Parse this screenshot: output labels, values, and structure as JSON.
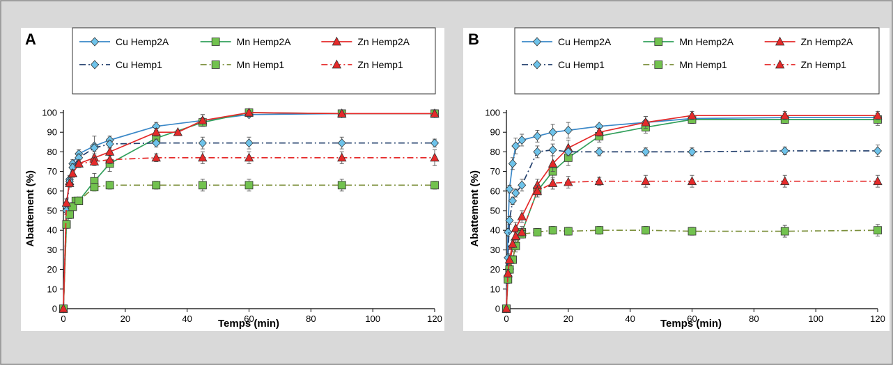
{
  "figure": {
    "background": "#d9d9d9",
    "panel_background": "#ffffff"
  },
  "chart_data": [
    {
      "panel": "A",
      "type": "line",
      "xlabel": "Temps (min)",
      "ylabel": "Abattement (%)",
      "xlim": [
        0,
        120
      ],
      "ylim": [
        0,
        100
      ],
      "xticks": [
        0,
        20,
        40,
        60,
        80,
        100,
        120
      ],
      "yticks": [
        0,
        10,
        20,
        30,
        40,
        50,
        60,
        70,
        80,
        90,
        100
      ],
      "grid": false,
      "legend": "top",
      "series": [
        {
          "name": "Cu Hemp2A",
          "marker": "diamond",
          "color": "#3a88c8",
          "marker_color": "#6ec3ea",
          "dash": "solid",
          "x": [
            0,
            1,
            2,
            3,
            5,
            10,
            15,
            30,
            45,
            60,
            90,
            120
          ],
          "y": [
            0,
            52,
            66,
            74,
            79,
            83,
            86,
            93,
            96,
            99,
            99.5,
            99.5
          ],
          "err": [
            0,
            2,
            2,
            2,
            2,
            5,
            2,
            2,
            3,
            1,
            1,
            1
          ]
        },
        {
          "name": "Mn Hemp2A",
          "marker": "square",
          "color": "#33a05c",
          "marker_color": "#72c24f",
          "dash": "solid",
          "x": [
            0,
            1,
            2,
            3,
            4,
            5,
            10,
            15,
            30,
            45,
            60,
            90,
            120
          ],
          "y": [
            0,
            43,
            48,
            52,
            55,
            55,
            65,
            74,
            87,
            95,
            100,
            99.5,
            99.5
          ],
          "err": [
            0,
            2,
            2,
            2,
            2,
            2,
            4,
            4,
            3,
            2,
            1,
            1,
            1
          ]
        },
        {
          "name": "Zn Hemp2A",
          "marker": "triangle",
          "color": "#e52a2a",
          "marker_color": "#e52a2a",
          "dash": "solid",
          "x": [
            0,
            1,
            2,
            3,
            5,
            10,
            15,
            30,
            37,
            45,
            60,
            90,
            120
          ],
          "y": [
            0,
            54,
            65,
            69,
            74,
            77,
            80,
            90,
            90,
            96,
            100,
            99.5,
            99.5
          ],
          "err": [
            0,
            2,
            2,
            2,
            2,
            2,
            2,
            2,
            1,
            3,
            1,
            1,
            2
          ]
        },
        {
          "name": "Cu Hemp1",
          "marker": "diamond",
          "color": "#24416e",
          "marker_color": "#6ec3ea",
          "dash": "dashdot",
          "x": [
            0,
            1,
            2,
            3,
            5,
            10,
            15,
            30,
            45,
            60,
            90,
            120
          ],
          "y": [
            0,
            50,
            65,
            72,
            77,
            82,
            84,
            84.5,
            84.5,
            84.5,
            84.5,
            84.5
          ],
          "err": [
            0,
            2,
            2,
            2,
            2,
            2,
            2,
            2,
            3,
            3,
            3,
            2
          ]
        },
        {
          "name": "Mn Hemp1",
          "marker": "square",
          "color": "#7b8f3a",
          "marker_color": "#72c24f",
          "dash": "dashdot",
          "x": [
            0,
            1,
            2,
            3,
            5,
            10,
            15,
            30,
            45,
            60,
            90,
            120
          ],
          "y": [
            0,
            43,
            48,
            52,
            55,
            62,
            63,
            63,
            63,
            63,
            63,
            63
          ],
          "err": [
            0,
            2,
            2,
            2,
            2,
            2,
            2,
            2,
            3,
            3,
            3,
            2
          ]
        },
        {
          "name": "Zn Hemp1",
          "marker": "triangle",
          "color": "#e52a2a",
          "marker_color": "#e52a2a",
          "dash": "dashdot",
          "x": [
            0,
            1,
            2,
            3,
            5,
            10,
            15,
            30,
            45,
            60,
            90,
            120
          ],
          "y": [
            0,
            54,
            64,
            69,
            74,
            75,
            76,
            77,
            77,
            77,
            77,
            77
          ],
          "err": [
            0,
            2,
            2,
            2,
            2,
            2,
            2,
            2,
            3,
            3,
            3,
            4
          ]
        }
      ]
    },
    {
      "panel": "B",
      "type": "line",
      "xlabel": "Temps (min)",
      "ylabel": "Abattement (%)",
      "xlim": [
        0,
        120
      ],
      "ylim": [
        0,
        100
      ],
      "xticks": [
        0,
        20,
        40,
        60,
        80,
        100,
        120
      ],
      "yticks": [
        0,
        10,
        20,
        30,
        40,
        50,
        60,
        70,
        80,
        90,
        100
      ],
      "grid": false,
      "legend": "top",
      "series": [
        {
          "name": "Cu Hemp2A",
          "marker": "diamond",
          "color": "#3a88c8",
          "marker_color": "#6ec3ea",
          "dash": "solid",
          "x": [
            0,
            0.5,
            1,
            2,
            3,
            5,
            10,
            15,
            20,
            30,
            45,
            60,
            90,
            120
          ],
          "y": [
            0,
            39,
            61,
            74,
            83,
            86,
            88,
            90,
            91,
            93,
            95,
            97,
            97.5,
            97.5
          ],
          "err": [
            0,
            2,
            2,
            3,
            4,
            3,
            3,
            4,
            4,
            1,
            3,
            2,
            2,
            2
          ]
        },
        {
          "name": "Mn Hemp2A",
          "marker": "square",
          "color": "#33a05c",
          "marker_color": "#72c24f",
          "dash": "solid",
          "x": [
            0,
            0.5,
            1,
            2,
            3,
            5,
            10,
            15,
            20,
            30,
            45,
            60,
            90,
            120
          ],
          "y": [
            0,
            15,
            20,
            25,
            32,
            39,
            60,
            70,
            77,
            88,
            92.5,
            96.5,
            96.5,
            96.5
          ],
          "err": [
            0,
            2,
            2,
            2,
            3,
            3,
            3,
            4,
            4,
            3,
            3,
            2,
            2,
            3
          ]
        },
        {
          "name": "Zn Hemp2A",
          "marker": "triangle",
          "color": "#e52a2a",
          "marker_color": "#e52a2a",
          "dash": "solid",
          "x": [
            0,
            0.5,
            1,
            2,
            3,
            5,
            10,
            15,
            20,
            30,
            45,
            60,
            90,
            120
          ],
          "y": [
            0,
            18,
            22,
            32,
            41,
            47,
            63,
            74,
            82,
            90,
            95,
            98.5,
            98.5,
            98.5
          ],
          "err": [
            0,
            2,
            2,
            3,
            3,
            3,
            3,
            4,
            4,
            2,
            3,
            2,
            2,
            2
          ]
        },
        {
          "name": "Cu Hemp1",
          "marker": "diamond",
          "color": "#24416e",
          "marker_color": "#6ec3ea",
          "dash": "dashdot",
          "x": [
            0,
            0.5,
            1,
            2,
            3,
            5,
            10,
            15,
            20,
            30,
            45,
            60,
            90,
            120
          ],
          "y": [
            0,
            26,
            45,
            55,
            59,
            63,
            80,
            81,
            80,
            80,
            80,
            80,
            80.5,
            80.5
          ],
          "err": [
            0,
            2,
            2,
            2,
            2,
            3,
            3,
            3,
            2,
            2,
            2,
            2,
            2,
            3
          ]
        },
        {
          "name": "Mn Hemp1",
          "marker": "square",
          "color": "#7b8f3a",
          "marker_color": "#72c24f",
          "dash": "dashdot",
          "x": [
            0,
            0.5,
            1,
            2,
            3,
            5,
            10,
            15,
            20,
            30,
            45,
            60,
            90,
            120
          ],
          "y": [
            0,
            15,
            20,
            25,
            32,
            38,
            39,
            40,
            39.5,
            40,
            40,
            39.5,
            39.5,
            40
          ],
          "err": [
            0,
            2,
            2,
            2,
            2,
            2,
            2,
            2,
            2,
            2,
            2,
            2,
            3,
            3
          ]
        },
        {
          "name": "Zn Hemp1",
          "marker": "triangle",
          "color": "#e52a2a",
          "marker_color": "#e52a2a",
          "dash": "dashdot",
          "x": [
            0,
            0.5,
            1,
            2,
            3,
            5,
            10,
            15,
            20,
            30,
            45,
            60,
            90,
            120
          ],
          "y": [
            0,
            18,
            25,
            33,
            37,
            39,
            60,
            64,
            64.5,
            65,
            65,
            65,
            65,
            65
          ],
          "err": [
            0,
            2,
            2,
            2,
            2,
            2,
            3,
            3,
            3,
            2,
            3,
            3,
            3,
            3
          ]
        }
      ]
    }
  ]
}
